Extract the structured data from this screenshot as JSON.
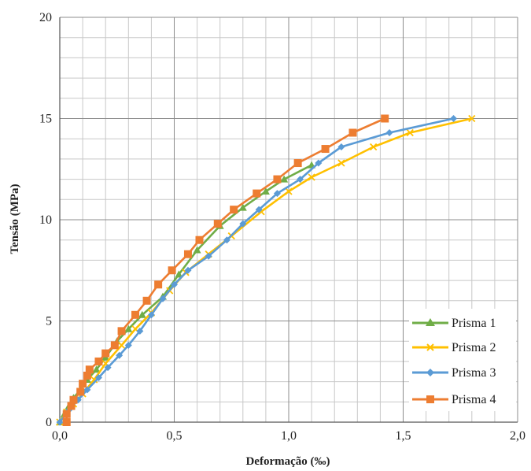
{
  "chart_data": {
    "type": "line",
    "title": "",
    "xlabel": "Deformação (‰)",
    "ylabel": "Tensão (MPa)",
    "xlim": [
      0,
      2
    ],
    "ylim": [
      0,
      20
    ],
    "xticks": [
      0,
      0.5,
      1.0,
      1.5,
      2.0
    ],
    "xtick_labels": [
      "0,0",
      "0,5",
      "1,0",
      "1,5",
      "2,0"
    ],
    "yticks": [
      0,
      5,
      10,
      15,
      20
    ],
    "ytick_labels": [
      "0",
      "5",
      "10",
      "15",
      "20"
    ],
    "grid": true,
    "legend_position": "bottom-right",
    "series": [
      {
        "name": "Prisma 1",
        "color": "#70AD47",
        "marker": "triangle",
        "points": [
          [
            0.0,
            0.0
          ],
          [
            0.02,
            0.4
          ],
          [
            0.04,
            0.8
          ],
          [
            0.06,
            1.2
          ],
          [
            0.09,
            1.6
          ],
          [
            0.12,
            2.1
          ],
          [
            0.16,
            2.6
          ],
          [
            0.2,
            3.2
          ],
          [
            0.25,
            4.0
          ],
          [
            0.3,
            4.6
          ],
          [
            0.36,
            5.3
          ],
          [
            0.45,
            6.2
          ],
          [
            0.52,
            7.3
          ],
          [
            0.6,
            8.5
          ],
          [
            0.7,
            9.7
          ],
          [
            0.8,
            10.6
          ],
          [
            0.9,
            11.4
          ],
          [
            0.98,
            12.0
          ],
          [
            1.1,
            12.7
          ]
        ]
      },
      {
        "name": "Prisma 2",
        "color": "#FFC000",
        "marker": "x",
        "points": [
          [
            0.0,
            0.0
          ],
          [
            0.03,
            0.5
          ],
          [
            0.06,
            0.9
          ],
          [
            0.1,
            1.4
          ],
          [
            0.15,
            2.1
          ],
          [
            0.2,
            2.9
          ],
          [
            0.27,
            3.8
          ],
          [
            0.33,
            4.6
          ],
          [
            0.4,
            5.4
          ],
          [
            0.48,
            6.5
          ],
          [
            0.55,
            7.4
          ],
          [
            0.65,
            8.3
          ],
          [
            0.75,
            9.2
          ],
          [
            0.88,
            10.4
          ],
          [
            1.0,
            11.4
          ],
          [
            1.1,
            12.1
          ],
          [
            1.23,
            12.8
          ],
          [
            1.37,
            13.6
          ],
          [
            1.53,
            14.3
          ],
          [
            1.8,
            15.0
          ]
        ]
      },
      {
        "name": "Prisma 3",
        "color": "#5B9BD5",
        "marker": "diamond",
        "points": [
          [
            0.0,
            0.0
          ],
          [
            0.04,
            0.6
          ],
          [
            0.08,
            1.1
          ],
          [
            0.12,
            1.6
          ],
          [
            0.17,
            2.2
          ],
          [
            0.21,
            2.7
          ],
          [
            0.26,
            3.3
          ],
          [
            0.3,
            3.8
          ],
          [
            0.35,
            4.5
          ],
          [
            0.4,
            5.3
          ],
          [
            0.45,
            6.1
          ],
          [
            0.5,
            6.8
          ],
          [
            0.56,
            7.5
          ],
          [
            0.65,
            8.2
          ],
          [
            0.73,
            9.0
          ],
          [
            0.8,
            9.8
          ],
          [
            0.87,
            10.5
          ],
          [
            0.95,
            11.3
          ],
          [
            1.05,
            12.0
          ],
          [
            1.13,
            12.8
          ],
          [
            1.23,
            13.6
          ],
          [
            1.44,
            14.3
          ],
          [
            1.72,
            15.0
          ]
        ]
      },
      {
        "name": "Prisma 4",
        "color": "#ED7D31",
        "marker": "square",
        "points": [
          [
            0.03,
            0.0
          ],
          [
            0.03,
            0.4
          ],
          [
            0.05,
            0.8
          ],
          [
            0.06,
            1.1
          ],
          [
            0.09,
            1.5
          ],
          [
            0.1,
            1.9
          ],
          [
            0.12,
            2.3
          ],
          [
            0.13,
            2.6
          ],
          [
            0.17,
            3.0
          ],
          [
            0.2,
            3.4
          ],
          [
            0.24,
            3.8
          ],
          [
            0.27,
            4.5
          ],
          [
            0.33,
            5.3
          ],
          [
            0.38,
            6.0
          ],
          [
            0.43,
            6.8
          ],
          [
            0.49,
            7.5
          ],
          [
            0.56,
            8.3
          ],
          [
            0.61,
            9.0
          ],
          [
            0.69,
            9.8
          ],
          [
            0.76,
            10.5
          ],
          [
            0.86,
            11.3
          ],
          [
            0.95,
            12.0
          ],
          [
            1.04,
            12.8
          ],
          [
            1.16,
            13.5
          ],
          [
            1.28,
            14.3
          ],
          [
            1.42,
            15.0
          ]
        ]
      }
    ]
  }
}
